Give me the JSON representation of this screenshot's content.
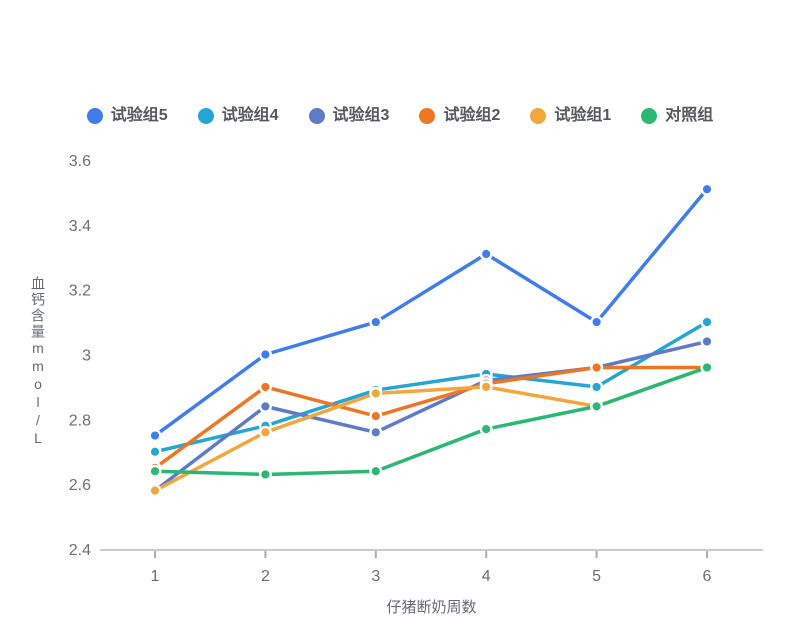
{
  "chart_data": {
    "type": "line",
    "title": "",
    "xlabel": "仔猪断奶周数",
    "ylabel": "血钙含量mmol/L",
    "x": [
      "1",
      "2",
      "3",
      "4",
      "5",
      "6"
    ],
    "ylim": [
      2.4,
      3.6
    ],
    "yticks": [
      2.4,
      2.6,
      2.8,
      3,
      3.2,
      3.4,
      3.6
    ],
    "grid": false,
    "legend_position": "top",
    "marker": "circle-white-border",
    "series": [
      {
        "name": "试验组5",
        "color": "#3E7DEB",
        "values": [
          2.75,
          3.0,
          3.1,
          3.31,
          3.1,
          3.51
        ]
      },
      {
        "name": "试验组4",
        "color": "#24A5D6",
        "values": [
          2.7,
          2.78,
          2.89,
          2.94,
          2.9,
          3.1
        ]
      },
      {
        "name": "试验组3",
        "color": "#5E7BC8",
        "values": [
          2.58,
          2.84,
          2.76,
          2.92,
          2.96,
          3.04
        ]
      },
      {
        "name": "试验组2",
        "color": "#ED7524",
        "values": [
          2.65,
          2.9,
          2.81,
          2.91,
          2.96,
          2.96
        ]
      },
      {
        "name": "试验组1",
        "color": "#F2A63C",
        "values": [
          2.58,
          2.76,
          2.88,
          2.9,
          2.84,
          2.96
        ]
      },
      {
        "name": "对照组",
        "color": "#2AB873",
        "values": [
          2.64,
          2.63,
          2.64,
          2.77,
          2.84,
          2.96
        ]
      }
    ],
    "axis_color": "#c9ccd1",
    "tick_mark_color": "#a9adb2"
  }
}
